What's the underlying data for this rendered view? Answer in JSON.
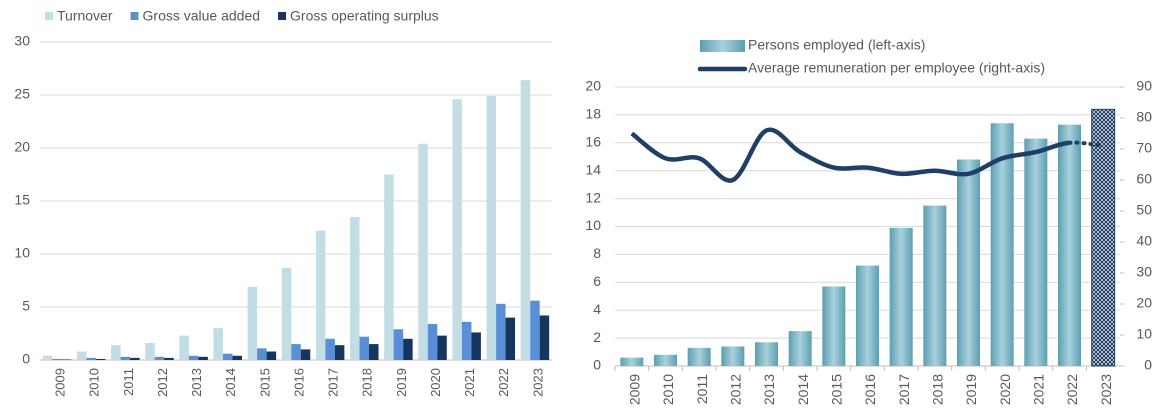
{
  "chart_data": [
    {
      "type": "bar",
      "categories": [
        "2009",
        "2010",
        "2011",
        "2012",
        "2013",
        "2014",
        "2015",
        "2016",
        "2017",
        "2018",
        "2019",
        "2020",
        "2021",
        "2022",
        "2023"
      ],
      "series": [
        {
          "name": "Turnover",
          "color": "#c3dde5",
          "values": [
            0.4,
            0.8,
            1.4,
            1.6,
            2.3,
            3.0,
            6.9,
            8.7,
            12.2,
            13.5,
            17.5,
            20.4,
            24.6,
            24.9,
            26.4
          ]
        },
        {
          "name": "Gross value added",
          "color": "#5a8fd6",
          "values": [
            0.1,
            0.2,
            0.3,
            0.3,
            0.4,
            0.6,
            1.1,
            1.5,
            2.0,
            2.2,
            2.9,
            3.4,
            3.6,
            5.3,
            5.6
          ]
        },
        {
          "name": "Gross operating surplus",
          "color": "#17365d",
          "values": [
            0.05,
            0.1,
            0.2,
            0.2,
            0.3,
            0.4,
            0.8,
            1.0,
            1.4,
            1.5,
            2.0,
            2.3,
            2.6,
            4.0,
            4.2
          ]
        }
      ],
      "ylim": [
        0,
        30
      ],
      "yticks": [
        0,
        5,
        10,
        15,
        20,
        25,
        30
      ],
      "grid": true,
      "legend": "top"
    },
    {
      "type": "bar-line",
      "categories": [
        "2009",
        "2010",
        "2011",
        "2012",
        "2013",
        "2014",
        "2015",
        "2016",
        "2017",
        "2018",
        "2019",
        "2020",
        "2021",
        "2022",
        "2023"
      ],
      "series": [
        {
          "name": "Persons employed (left-axis)",
          "color": "#7db8c7",
          "values": [
            0.6,
            0.8,
            1.3,
            1.4,
            1.7,
            2.5,
            5.7,
            7.2,
            9.9,
            11.5,
            14.8,
            17.4,
            16.3,
            17.3,
            18.4
          ]
        },
        {
          "name": "Average remuneration per employee (right-axis)",
          "color": "#1f3f66",
          "axis": "y2",
          "values": [
            75,
            67,
            67,
            60,
            76,
            69,
            64,
            64,
            62,
            63,
            62,
            67,
            69,
            72,
            71
          ]
        }
      ],
      "ylim": [
        0,
        20
      ],
      "yticks": [
        0,
        2,
        4,
        6,
        8,
        10,
        12,
        14,
        16,
        18,
        20
      ],
      "y2lim": [
        0,
        90
      ],
      "y2ticks": [
        0,
        10,
        20,
        30,
        40,
        50,
        60,
        70,
        80,
        90
      ],
      "grid": true,
      "legend": "top"
    }
  ]
}
